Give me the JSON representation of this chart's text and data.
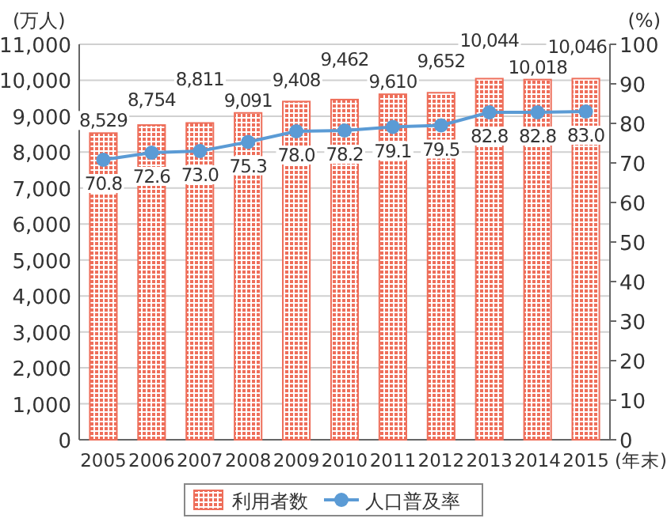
{
  "chart_data": {
    "type": "bar",
    "categories": [
      "2005",
      "2006",
      "2007",
      "2008",
      "2009",
      "2010",
      "2011",
      "2012",
      "2013",
      "2014",
      "2015"
    ],
    "xlabel": "(年末)",
    "ylabel": "(万人)",
    "y2label": "(%)",
    "series": [
      {
        "name": "利用者数",
        "color": "#ee6e5a",
        "values": [
          8529,
          8754,
          8811,
          9091,
          9408,
          9462,
          9610,
          9652,
          10044,
          10018,
          10046
        ],
        "value_labels": [
          "8,529",
          "8,754",
          "8,811",
          "9,091",
          "9,408",
          "9,462",
          "9,610",
          "9,652",
          "10,044",
          "10,018",
          "10,046"
        ]
      },
      {
        "name": "人口普及率",
        "type": "line",
        "axis": "y2",
        "color": "#5b9bd5",
        "marker": "circle",
        "values": [
          70.8,
          72.6,
          73.0,
          75.3,
          78.0,
          78.2,
          79.1,
          79.5,
          82.8,
          82.8,
          83.0
        ],
        "value_labels": [
          "70.8",
          "72.6",
          "73.0",
          "75.3",
          "78.0",
          "78.2",
          "79.1",
          "79.5",
          "82.8",
          "82.8",
          "83.0"
        ]
      }
    ],
    "ylim": [
      0,
      11000
    ],
    "yticks": [
      0,
      {
        "value": 1000,
        "label": "1,000"
      },
      {
        "value": 2000,
        "label": "2,000"
      },
      {
        "value": 3000,
        "label": "3,000"
      },
      {
        "value": 4000,
        "label": "4,000"
      },
      {
        "value": 5000,
        "label": "5,000"
      },
      {
        "value": 6000,
        "label": "6,000"
      },
      {
        "value": 7000,
        "label": "7,000"
      },
      {
        "value": 8000,
        "label": "8,000"
      },
      {
        "value": 9000,
        "label": "9,000"
      },
      {
        "value": 10000,
        "label": "10,000"
      },
      {
        "value": 11000,
        "label": "11,000"
      }
    ],
    "y2lim": [
      0,
      100
    ],
    "y2ticks": [
      0,
      10,
      20,
      30,
      40,
      50,
      60,
      70,
      80,
      90,
      100
    ],
    "grid": "y",
    "legend": "bottom"
  }
}
